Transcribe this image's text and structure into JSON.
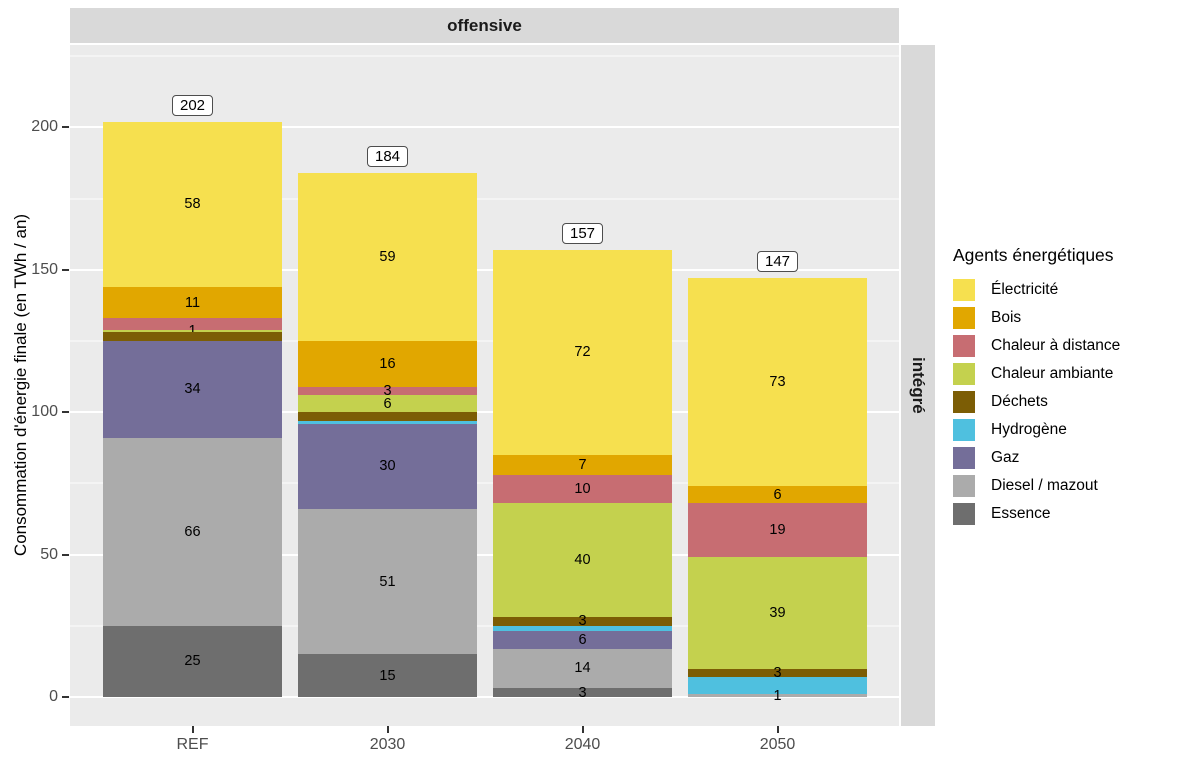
{
  "facets": {
    "top": "offensive",
    "right": "intégré"
  },
  "y_axis": {
    "title": "Consommation d'énergie finale (en TWh / an)",
    "major_ticks": [
      0,
      50,
      100,
      150,
      200
    ],
    "minor_ticks": [
      25,
      75,
      125,
      175,
      225
    ]
  },
  "legend": {
    "title": "Agents énergétiques"
  },
  "colors": {
    "panel_bg": "#EBEBEB",
    "strip_bg": "#D9D9D9",
    "grid_major": "#FFFFFF",
    "axis_text": "#4D4D4D"
  },
  "chart_data": {
    "type": "bar",
    "stacked": true,
    "title": "",
    "xlabel": "",
    "ylabel": "Consommation d'énergie finale (en TWh / an)",
    "ylim": [
      0,
      229
    ],
    "grid": true,
    "legend_position": "right",
    "categories": [
      "REF",
      "2030",
      "2040",
      "2050"
    ],
    "totals": [
      "202",
      "184",
      "157",
      "147"
    ],
    "series": [
      {
        "name": "Électricité",
        "color": "#F6E04F",
        "values": [
          58,
          59,
          72,
          73
        ],
        "labels": [
          "58",
          "59",
          "72",
          "73"
        ]
      },
      {
        "name": "Bois",
        "color": "#E1A700",
        "values": [
          11,
          16,
          7,
          6
        ],
        "labels": [
          "11",
          "16",
          "7",
          "6"
        ]
      },
      {
        "name": "Chaleur à distance",
        "color": "#C76D72",
        "values": [
          4,
          3,
          10,
          19
        ],
        "labels": [
          "",
          "3",
          "10",
          "19"
        ]
      },
      {
        "name": "Chaleur ambiante",
        "color": "#C4D14E",
        "values": [
          1,
          6,
          40,
          39
        ],
        "labels": [
          "1",
          "6",
          "40",
          "39"
        ]
      },
      {
        "name": "Déchets",
        "color": "#7C5D05",
        "values": [
          3,
          3,
          3,
          3
        ],
        "labels": [
          "",
          "",
          "3",
          "3"
        ]
      },
      {
        "name": "Hydrogène",
        "color": "#4FC0DF",
        "values": [
          0,
          1,
          2,
          6
        ],
        "labels": [
          "",
          "",
          "",
          ""
        ]
      },
      {
        "name": "Gaz",
        "color": "#746E99",
        "values": [
          34,
          30,
          6,
          0
        ],
        "labels": [
          "34",
          "30",
          "6",
          ""
        ]
      },
      {
        "name": "Diesel / mazout",
        "color": "#ABABAB",
        "values": [
          66,
          51,
          14,
          1
        ],
        "labels": [
          "66",
          "51",
          "14",
          "1"
        ]
      },
      {
        "name": "Essence",
        "color": "#6E6E6E",
        "values": [
          25,
          15,
          3,
          0
        ],
        "labels": [
          "25",
          "15",
          "3",
          ""
        ]
      }
    ]
  }
}
